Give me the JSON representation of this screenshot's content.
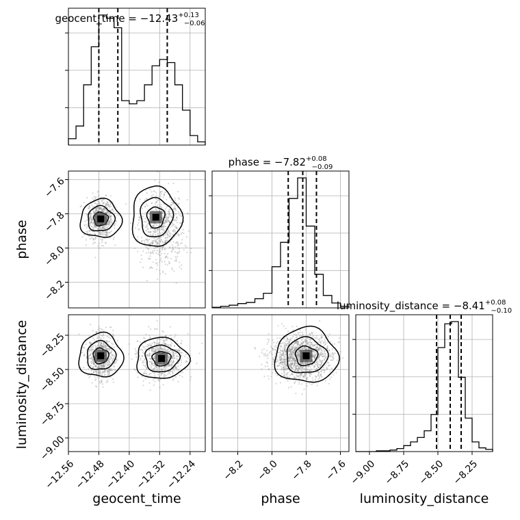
{
  "chart_data": {
    "type": "corner",
    "parameters": [
      "geocent_time",
      "phase",
      "luminosity_distance"
    ],
    "axis_labels": {
      "geocent_time": "geocent_time",
      "phase": "phase",
      "luminosity_distance": "luminosity_distance"
    },
    "titles": [
      {
        "param": "geocent_time",
        "text": "geocent_time = −12.43",
        "plus": "+0.13",
        "minus": "−0.06"
      },
      {
        "param": "phase",
        "text": "phase = −7.82",
        "plus": "+0.08",
        "minus": "−0.09"
      },
      {
        "param": "luminosity_distance",
        "text": "luminosity_distance = −8.41",
        "plus": "+0.08",
        "minus": "−0.10"
      }
    ],
    "ranges": {
      "geocent_time": [
        -12.56,
        -12.2
      ],
      "phase": [
        -8.35,
        -7.55
      ],
      "luminosity_distance": [
        -9.1,
        -8.1
      ]
    },
    "ticks": {
      "geocent_time": {
        "values": [
          -12.56,
          -12.48,
          -12.4,
          -12.32,
          -12.24
        ],
        "labels": [
          "−12.56",
          "−12.48",
          "−12.40",
          "−12.32",
          "−12.24"
        ]
      },
      "phase_y": {
        "values": [
          -7.6,
          -7.8,
          -8.0,
          -8.2
        ],
        "labels": [
          "−7.6",
          "−7.8",
          "−8.0",
          "−8.2"
        ]
      },
      "phase_x": {
        "values": [
          -8.2,
          -8.0,
          -7.8,
          -7.6
        ],
        "labels": [
          "−8.2",
          "−8.0",
          "−7.8",
          "−7.6"
        ]
      },
      "luminosity_distance": {
        "values": [
          -9.0,
          -8.75,
          -8.5,
          -8.25
        ],
        "labels": [
          "−9.00",
          "−8.75",
          "−8.50",
          "−8.25"
        ]
      }
    },
    "quantiles": {
      "geocent_time": [
        -12.48,
        -12.43,
        -12.3
      ],
      "phase": [
        -7.905,
        -7.82,
        -7.74
      ],
      "luminosity_distance": [
        -8.51,
        -8.41,
        -8.33
      ]
    },
    "histograms": {
      "geocent_time": {
        "bin_edges": [
          -12.56,
          -12.54,
          -12.52,
          -12.5,
          -12.48,
          -12.46,
          -12.44,
          -12.42,
          -12.4,
          -12.38,
          -12.36,
          -12.34,
          -12.32,
          -12.3,
          -12.28,
          -12.26,
          -12.24,
          -12.22,
          -12.2
        ],
        "counts": [
          2,
          6,
          19,
          31,
          41,
          40,
          37,
          14,
          13,
          14,
          19,
          25,
          27,
          26,
          19,
          11,
          3,
          1
        ]
      },
      "phase": {
        "bin_edges": [
          -8.35,
          -8.3,
          -8.25,
          -8.2,
          -8.15,
          -8.1,
          -8.05,
          -8.0,
          -7.95,
          -7.9,
          -7.85,
          -7.8,
          -7.75,
          -7.7,
          -7.65,
          -7.6,
          -7.55
        ],
        "counts": [
          1,
          3,
          5,
          8,
          10,
          17,
          27,
          76,
          121,
          202,
          240,
          151,
          62,
          23,
          9,
          3
        ]
      },
      "luminosity_distance": {
        "bin_edges": [
          -9.1,
          -9.05,
          -9.0,
          -8.95,
          -8.9,
          -8.85,
          -8.8,
          -8.75,
          -8.7,
          -8.65,
          -8.6,
          -8.55,
          -8.5,
          -8.45,
          -8.4,
          -8.35,
          -8.3,
          -8.25,
          -8.2,
          -8.15,
          -8.1
        ],
        "counts": [
          0,
          0,
          0,
          1,
          1,
          2,
          4,
          8,
          13,
          19,
          28,
          50,
          140,
          172,
          175,
          100,
          45,
          13,
          5,
          3
        ]
      }
    },
    "modes": {
      "geocent_time": [
        {
          "center": -12.475,
          "weight": 0.5,
          "sigma": 0.017
        },
        {
          "center": -12.315,
          "weight": 0.5,
          "sigma": 0.028
        }
      ],
      "phase": [
        {
          "center": -7.83,
          "sigma": 0.09
        }
      ],
      "luminosity_distance": [
        {
          "center": -8.41,
          "sigma": 0.08
        }
      ]
    },
    "grid": true
  }
}
